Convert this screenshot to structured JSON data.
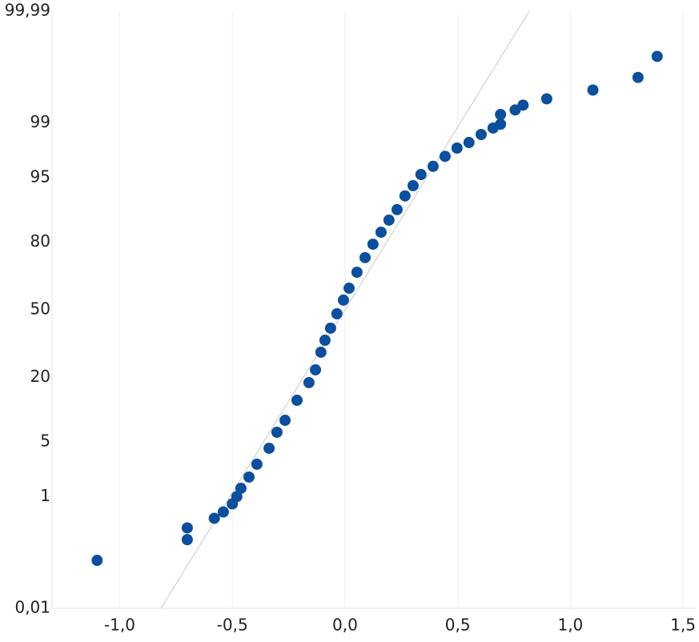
{
  "chart_data": {
    "type": "probability_scatter",
    "yscale": "probability",
    "grid": "x",
    "color": "#0b4f9e",
    "x": [
      -1.1,
      -0.7,
      -0.7,
      -0.58,
      -0.54,
      -0.5,
      -0.48,
      -0.462,
      -0.426,
      -0.391,
      -0.337,
      -0.302,
      -0.266,
      -0.213,
      -0.16,
      -0.131,
      -0.107,
      -0.089,
      -0.064,
      -0.036,
      -0.007,
      0.018,
      0.053,
      0.089,
      0.124,
      0.16,
      0.195,
      0.231,
      0.266,
      0.302,
      0.337,
      0.391,
      0.444,
      0.497,
      0.55,
      0.604,
      0.657,
      0.69,
      0.69,
      0.755,
      0.79,
      0.895,
      1.1,
      1.3,
      1.385
    ],
    "values": [
      0.09,
      0.33,
      0.21,
      0.47,
      0.59,
      0.78,
      1.0,
      1.31,
      1.86,
      2.72,
      4.23,
      6.36,
      8.44,
      12.99,
      18.22,
      22.72,
      29.87,
      35.23,
      40.94,
      48.0,
      54.8,
      60.6,
      68.0,
      74.2,
      79.3,
      83.3,
      86.8,
      89.4,
      92.2,
      93.9,
      95.4,
      96.3,
      97.2,
      97.8,
      98.14,
      98.55,
      98.82,
      98.96,
      99.25,
      99.36,
      99.46,
      99.57,
      99.69,
      99.81,
      99.92
    ],
    "reference_line": {
      "x": [
        -0.817,
        0.817
      ],
      "values": [
        0.01,
        99.99
      ],
      "color": "#c8c8c8"
    },
    "xlim": [
      -1.3,
      1.56
    ],
    "xticks": [
      {
        "value": -1,
        "label": "-1,0"
      },
      {
        "value": -0.5,
        "label": "-0,5"
      },
      {
        "value": 0,
        "label": "0,0"
      },
      {
        "value": 0.5,
        "label": "0,5"
      },
      {
        "value": 1,
        "label": "1,0"
      },
      {
        "value": 1.5,
        "label": "1,5"
      }
    ],
    "ylim": [
      0.01,
      99.99
    ],
    "yticks": [
      {
        "value": 0.01,
        "label": "0,01"
      },
      1,
      5,
      20,
      50,
      80,
      95,
      99,
      {
        "value": 99.99,
        "label": "99,99"
      }
    ]
  }
}
